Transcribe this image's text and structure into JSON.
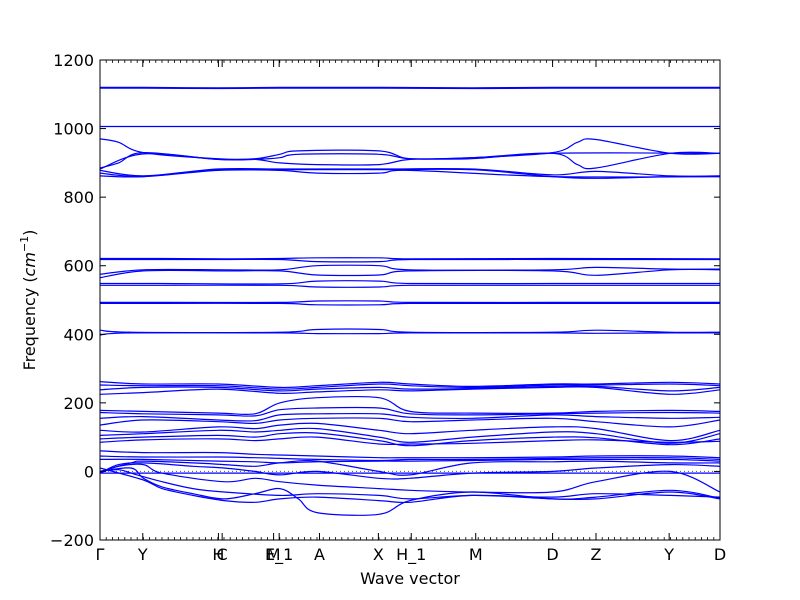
{
  "chart_data": {
    "type": "line",
    "xlabel": "Wave vector",
    "ylabel": "Frequency (cm⁻¹)",
    "ylabel_prefix": "Frequency (",
    "ylabel_unit": "cm",
    "ylabel_exp": "−1",
    "ylabel_suffix": ")",
    "ylim": [
      -200,
      1200
    ],
    "yticks": [
      -200,
      0,
      200,
      400,
      600,
      800,
      1000,
      1200
    ],
    "xlim": [
      0,
      1
    ],
    "high_symmetry_points": [
      {
        "label": "Γ",
        "x": 0.0
      },
      {
        "label": "Y",
        "x": 0.069
      },
      {
        "label": "H",
        "x": 0.191
      },
      {
        "label": "C",
        "x": 0.197
      },
      {
        "label": "M",
        "x": 0.28
      },
      {
        "label": "E_1",
        "x": 0.289
      },
      {
        "label": "A",
        "x": 0.354
      },
      {
        "label": "X",
        "x": 0.449
      },
      {
        "label": "H_1",
        "x": 0.502
      },
      {
        "label": "M",
        "x": 0.606
      },
      {
        "label": "D",
        "x": 0.73
      },
      {
        "label": "Z",
        "x": 0.8
      },
      {
        "label": "Y",
        "x": 0.918
      },
      {
        "label": "D",
        "x": 1.0
      }
    ],
    "zero_line": {
      "y": 0,
      "style": "dotted"
    },
    "line_color": "#0000ff",
    "series": [
      {
        "x": [
          0,
          0.07,
          0.19,
          0.29,
          0.45,
          0.6,
          0.73,
          0.8,
          0.92,
          1
        ],
        "y": [
          1120,
          1120,
          1119,
          1120,
          1120,
          1119,
          1120,
          1120,
          1120,
          1120
        ]
      },
      {
        "x": [
          0,
          0.07,
          0.19,
          0.29,
          0.45,
          0.6,
          0.73,
          0.8,
          0.92,
          1
        ],
        "y": [
          1118,
          1118,
          1117,
          1118,
          1118,
          1117,
          1118,
          1118,
          1118,
          1118
        ]
      },
      {
        "x": [
          0,
          0.07,
          0.19,
          0.29,
          0.45,
          0.6,
          0.73,
          0.8,
          0.92,
          1
        ],
        "y": [
          1006,
          1006,
          1006,
          1006,
          1006,
          1006,
          1006,
          1006,
          1006,
          1006
        ]
      },
      {
        "x": [
          0,
          0.03,
          0.07,
          0.19,
          0.25,
          0.29,
          0.32,
          0.45,
          0.5,
          0.6,
          0.73,
          0.77,
          0.8,
          0.92,
          1
        ],
        "y": [
          970,
          960,
          930,
          912,
          912,
          925,
          935,
          935,
          912,
          915,
          930,
          960,
          968,
          928,
          928
        ]
      },
      {
        "x": [
          0,
          0.03,
          0.07,
          0.19,
          0.25,
          0.29,
          0.32,
          0.45,
          0.5,
          0.6,
          0.73,
          0.77,
          0.8,
          0.92,
          1
        ],
        "y": [
          885,
          900,
          930,
          910,
          910,
          915,
          925,
          925,
          912,
          915,
          928,
          895,
          885,
          928,
          928
        ]
      },
      {
        "x": [
          0,
          0.07,
          0.19,
          0.25,
          0.29,
          0.35,
          0.45,
          0.5,
          0.6,
          0.73,
          1
        ],
        "y": [
          882,
          926,
          910,
          910,
          900,
          895,
          895,
          910,
          912,
          928,
          928
        ]
      },
      {
        "x": [
          0,
          0.07,
          0.19,
          0.29,
          0.45,
          0.6,
          0.73,
          0.8,
          0.92,
          1
        ],
        "y": [
          878,
          862,
          882,
          882,
          882,
          882,
          865,
          875,
          862,
          862
        ]
      },
      {
        "x": [
          0,
          0.07,
          0.19,
          0.29,
          0.45,
          0.6,
          0.73,
          0.8,
          0.92,
          1
        ],
        "y": [
          862,
          860,
          880,
          880,
          880,
          880,
          860,
          855,
          860,
          860
        ]
      },
      {
        "x": [
          0,
          0.07,
          0.19,
          0.29,
          0.35,
          0.45,
          0.5,
          0.73,
          1
        ],
        "y": [
          870,
          860,
          878,
          878,
          870,
          870,
          878,
          860,
          860
        ]
      },
      {
        "x": [
          0,
          0.1,
          0.2,
          0.29,
          0.35,
          0.45,
          0.5,
          0.73,
          1
        ],
        "y": [
          621,
          621,
          620,
          621,
          623,
          623,
          620,
          621,
          620
        ]
      },
      {
        "x": [
          0,
          0.1,
          0.2,
          0.29,
          0.35,
          0.45,
          0.5,
          0.73,
          1
        ],
        "y": [
          618,
          618,
          618,
          618,
          612,
          612,
          618,
          618,
          618
        ]
      },
      {
        "x": [
          0,
          0.07,
          0.2,
          0.29,
          0.35,
          0.45,
          0.5,
          0.73,
          0.8,
          0.92,
          1
        ],
        "y": [
          575,
          588,
          588,
          588,
          600,
          600,
          588,
          588,
          595,
          590,
          590
        ]
      },
      {
        "x": [
          0,
          0.07,
          0.2,
          0.29,
          0.35,
          0.45,
          0.5,
          0.73,
          0.8,
          0.92,
          1
        ],
        "y": [
          565,
          585,
          585,
          585,
          573,
          573,
          585,
          585,
          572,
          588,
          588
        ]
      },
      {
        "x": [
          0,
          0.1,
          0.29,
          0.35,
          0.45,
          0.5,
          0.73,
          1
        ],
        "y": [
          548,
          548,
          547,
          555,
          555,
          548,
          548,
          548
        ]
      },
      {
        "x": [
          0,
          0.1,
          0.29,
          0.35,
          0.45,
          0.5,
          0.73,
          1
        ],
        "y": [
          543,
          543,
          543,
          538,
          538,
          543,
          543,
          543
        ]
      },
      {
        "x": [
          0,
          0.1,
          0.29,
          0.35,
          0.45,
          0.5,
          0.73,
          1
        ],
        "y": [
          493,
          493,
          493,
          497,
          497,
          493,
          493,
          493
        ]
      },
      {
        "x": [
          0,
          0.1,
          0.29,
          0.35,
          0.45,
          0.5,
          0.73,
          1
        ],
        "y": [
          490,
          490,
          490,
          486,
          486,
          490,
          490,
          490
        ]
      },
      {
        "x": [
          0,
          0.05,
          0.29,
          0.35,
          0.45,
          0.5,
          0.73,
          0.8,
          0.92,
          1
        ],
        "y": [
          412,
          406,
          406,
          414,
          414,
          406,
          406,
          412,
          406,
          406
        ]
      },
      {
        "x": [
          0,
          0.05,
          0.29,
          0.35,
          0.45,
          0.5,
          0.73,
          0.8,
          0.92,
          1
        ],
        "y": [
          398,
          404,
          404,
          402,
          402,
          404,
          404,
          403,
          404,
          404
        ]
      },
      {
        "x": [
          0,
          0.07,
          0.19,
          0.29,
          0.35,
          0.45,
          0.5,
          0.6,
          0.73,
          0.8,
          0.92,
          1
        ],
        "y": [
          262,
          255,
          255,
          245,
          250,
          260,
          255,
          248,
          255,
          255,
          260,
          255
        ]
      },
      {
        "x": [
          0,
          0.07,
          0.19,
          0.29,
          0.35,
          0.45,
          0.5,
          0.6,
          0.73,
          0.8,
          0.92,
          1
        ],
        "y": [
          252,
          250,
          250,
          240,
          245,
          255,
          250,
          245,
          252,
          252,
          255,
          250
        ]
      },
      {
        "x": [
          0,
          0.07,
          0.19,
          0.29,
          0.35,
          0.45,
          0.5,
          0.6,
          0.73,
          0.8,
          0.92,
          1
        ],
        "y": [
          238,
          245,
          245,
          235,
          240,
          245,
          240,
          242,
          248,
          248,
          235,
          245
        ]
      },
      {
        "x": [
          0,
          0.07,
          0.19,
          0.29,
          0.35,
          0.45,
          0.5,
          0.6,
          0.73,
          0.8,
          0.92,
          1
        ],
        "y": [
          225,
          230,
          240,
          228,
          232,
          238,
          235,
          240,
          245,
          245,
          225,
          238
        ]
      },
      {
        "x": [
          0,
          0.07,
          0.19,
          0.25,
          0.29,
          0.35,
          0.45,
          0.5,
          0.6,
          0.73,
          0.8,
          0.92,
          1
        ],
        "y": [
          178,
          175,
          170,
          168,
          200,
          215,
          215,
          175,
          170,
          170,
          175,
          178,
          175
        ]
      },
      {
        "x": [
          0,
          0.07,
          0.19,
          0.25,
          0.29,
          0.35,
          0.45,
          0.5,
          0.6,
          0.73,
          0.8,
          0.92,
          1
        ],
        "y": [
          172,
          168,
          165,
          162,
          180,
          185,
          185,
          168,
          165,
          168,
          170,
          172,
          170
        ]
      },
      {
        "x": [
          0,
          0.07,
          0.19,
          0.25,
          0.29,
          0.35,
          0.45,
          0.5,
          0.6,
          0.73,
          0.8,
          0.92,
          1
        ],
        "y": [
          155,
          160,
          150,
          148,
          165,
          168,
          168,
          158,
          155,
          165,
          160,
          155,
          158
        ]
      },
      {
        "x": [
          0,
          0.07,
          0.19,
          0.25,
          0.29,
          0.35,
          0.45,
          0.5,
          0.6,
          0.73,
          0.8,
          0.92,
          1
        ],
        "y": [
          135,
          150,
          145,
          140,
          150,
          155,
          155,
          145,
          150,
          155,
          145,
          130,
          150
        ]
      },
      {
        "x": [
          0,
          0.07,
          0.19,
          0.25,
          0.29,
          0.35,
          0.45,
          0.5,
          0.6,
          0.73,
          0.8,
          0.92,
          1
        ],
        "y": [
          120,
          115,
          130,
          125,
          135,
          140,
          120,
          110,
          120,
          130,
          125,
          90,
          120
        ]
      },
      {
        "x": [
          0,
          0.07,
          0.19,
          0.25,
          0.29,
          0.35,
          0.45,
          0.5,
          0.6,
          0.73,
          0.8,
          0.92,
          1
        ],
        "y": [
          105,
          110,
          120,
          115,
          120,
          125,
          100,
          85,
          100,
          115,
          110,
          82,
          110
        ]
      },
      {
        "x": [
          0,
          0.07,
          0.19,
          0.25,
          0.29,
          0.35,
          0.45,
          0.5,
          0.6,
          0.73,
          0.8,
          0.92,
          1
        ],
        "y": [
          95,
          100,
          105,
          100,
          110,
          112,
          90,
          75,
          90,
          100,
          98,
          78,
          95
        ]
      },
      {
        "x": [
          0,
          0.07,
          0.19,
          0.25,
          0.29,
          0.35,
          0.45,
          0.5,
          0.6,
          0.73,
          0.8,
          0.92,
          1
        ],
        "y": [
          85,
          92,
          95,
          90,
          95,
          100,
          80,
          80,
          82,
          90,
          92,
          85,
          88
        ]
      },
      {
        "x": [
          0,
          0.07,
          0.19,
          0.25,
          0.29,
          0.35,
          0.45,
          0.5,
          0.6,
          0.73,
          0.8,
          0.92,
          1
        ],
        "y": [
          60,
          55,
          55,
          50,
          48,
          45,
          40,
          40,
          40,
          42,
          45,
          45,
          40
        ]
      },
      {
        "x": [
          0,
          0.07,
          0.19,
          0.25,
          0.29,
          0.35,
          0.45,
          0.5,
          0.6,
          0.73,
          0.8,
          0.92,
          1
        ],
        "y": [
          45,
          42,
          42,
          40,
          38,
          35,
          32,
          35,
          35,
          38,
          40,
          40,
          35
        ]
      },
      {
        "x": [
          0,
          0.07,
          0.19,
          0.25,
          0.29,
          0.35,
          0.45,
          0.5,
          0.6,
          0.73,
          0.8,
          0.92,
          1
        ],
        "y": [
          35,
          35,
          30,
          28,
          25,
          28,
          30,
          30,
          32,
          35,
          35,
          35,
          30
        ]
      },
      {
        "x": [
          0,
          0.05,
          0.07,
          0.15,
          0.2,
          0.25,
          0.29,
          0.35,
          0.45,
          0.5,
          0.6,
          0.73,
          0.8,
          0.92,
          1
        ],
        "y": [
          0,
          25,
          30,
          25,
          20,
          15,
          25,
          30,
          0,
          -10,
          25,
          28,
          30,
          25,
          25
        ]
      },
      {
        "x": [
          0,
          0.03,
          0.07,
          0.15,
          0.2,
          0.25,
          0.29,
          0.35,
          0.45,
          0.5,
          0.6,
          0.73,
          0.8,
          0.92,
          1
        ],
        "y": [
          -5,
          20,
          25,
          15,
          10,
          0,
          -10,
          0,
          -20,
          -20,
          -5,
          0,
          10,
          20,
          15
        ]
      },
      {
        "x": [
          0,
          0.03,
          0.07,
          0.1,
          0.2,
          0.25,
          0.29,
          0.35,
          0.45,
          0.5,
          0.6,
          0.73,
          0.8,
          0.92,
          1
        ],
        "y": [
          -5,
          15,
          20,
          -5,
          -30,
          -20,
          -30,
          -40,
          -50,
          -55,
          -60,
          -60,
          -30,
          0,
          -60
        ]
      },
      {
        "x": [
          0,
          0.03,
          0.06,
          0.1,
          0.15,
          0.2,
          0.29,
          0.35,
          0.45,
          0.5,
          0.6,
          0.73,
          0.8,
          0.92,
          1
        ],
        "y": [
          0,
          5,
          -10,
          -30,
          -50,
          -60,
          -70,
          -65,
          -70,
          -80,
          -70,
          -75,
          -65,
          -70,
          -75
        ]
      },
      {
        "x": [
          0,
          0.05,
          0.07,
          0.1,
          0.15,
          0.2,
          0.25,
          0.29,
          0.32,
          0.35,
          0.45,
          0.5,
          0.6,
          0.73,
          0.8,
          0.92,
          1
        ],
        "y": [
          0,
          10,
          -20,
          -45,
          -65,
          -80,
          -65,
          -50,
          -80,
          -120,
          -125,
          -85,
          -60,
          -80,
          -75,
          -55,
          -78
        ]
      },
      {
        "x": [
          0,
          0.07,
          0.1,
          0.15,
          0.2,
          0.25,
          0.29,
          0.35,
          0.45,
          0.5,
          0.6,
          0.73,
          0.8,
          0.92,
          1
        ],
        "y": [
          10,
          -25,
          -50,
          -70,
          -85,
          -90,
          -80,
          -75,
          -85,
          -90,
          -70,
          -80,
          -80,
          -60,
          -80
        ]
      },
      {
        "x": [
          0,
          0.07,
          0.2,
          0.29,
          0.35,
          0.45,
          0.5,
          0.6,
          0.73,
          0.8,
          0.92,
          1
        ],
        "y": [
          -5,
          -5,
          -5,
          -5,
          -5,
          -5,
          -5,
          -5,
          -5,
          -5,
          -5,
          -5
        ]
      }
    ]
  }
}
